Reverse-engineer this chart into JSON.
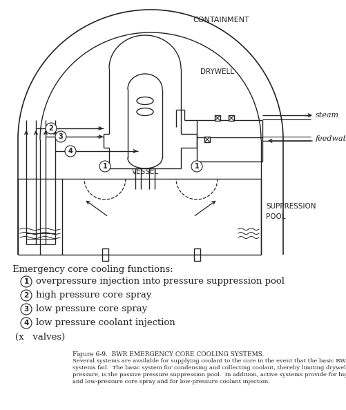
{
  "fig_label": "Figure 6-9.  BWR EMERGENCY CORE COOLING SYSTEMS.",
  "fig_caption_lines": [
    "Several systems are available for supplying coolant to the core in the event that the basic BWR",
    "systems fail.  The basic system for condensing and collecting coolant, thereby limiting drywell",
    "pressure, is the passive pressure suppression pool.  In addition, active systems provide for high-",
    "and low-pressure core spray and for low-pressure coolant injection."
  ],
  "containment_label": "CONTAINMENT",
  "drywell_label": "DRYWELL",
  "vessel_label": "VESSEL",
  "suppression_label": [
    "SUPPRESSION",
    "POOL"
  ],
  "steam_label": "steam",
  "feedwater_label": "feedwater",
  "legend_title": "Emergency core cooling functions:",
  "legend_items": [
    "overpressure injection into pressure suppression pool",
    "high pressure core spray",
    "low pressure core spray",
    "low pressure coolant injection"
  ],
  "legend_symbols": [
    "1",
    "2",
    "3",
    "4"
  ],
  "valve_note": "(x   valves)",
  "bg_color": "#ffffff",
  "line_color": "#222222"
}
